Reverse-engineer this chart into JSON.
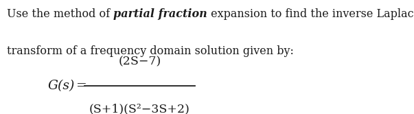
{
  "background_color": "#ffffff",
  "text_color": "#1c1c1c",
  "line1_part1": "Use the method of ",
  "line1_bold_italic": "partial fraction",
  "line1_part2": " expansion to find the inverse Laplace",
  "line2": "transform of a frequency domain solution given by:",
  "gs_label": "G(s)",
  "numerator": "(2S−7)",
  "denominator": "(S+1)(S²−3S+2)",
  "fig_width": 6.03,
  "fig_height": 1.66,
  "dpi": 100,
  "fontsize": 11.5,
  "fontsize_formula": 12.5
}
